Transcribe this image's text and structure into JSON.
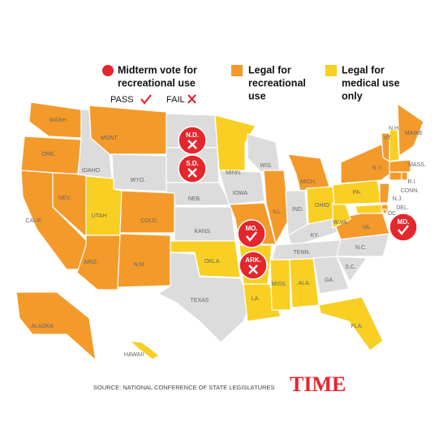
{
  "legend": {
    "vote": [
      "Midterm vote for",
      "recreational use"
    ],
    "pass": "PASS",
    "fail": "FAIL",
    "recreational": [
      "Legal for",
      "recreational",
      "use"
    ],
    "medical": [
      "Legal for",
      "medical use",
      "only"
    ]
  },
  "colors": {
    "recreational": "#f39a2b",
    "medical": "#f8cf22",
    "none": "#dcdcdc",
    "vote": "#e5262d"
  },
  "states": [
    {
      "label": "WASH.",
      "status": "recreational"
    },
    {
      "label": "ORE.",
      "status": "recreational"
    },
    {
      "label": "CALIF.",
      "status": "recreational"
    },
    {
      "label": "NEV.",
      "status": "recreational"
    },
    {
      "label": "IDAHO",
      "status": "none"
    },
    {
      "label": "MONT.",
      "status": "recreational"
    },
    {
      "label": "WYO.",
      "status": "none"
    },
    {
      "label": "UTAH",
      "status": "medical"
    },
    {
      "label": "COLO.",
      "status": "recreational"
    },
    {
      "label": "ARIZ.",
      "status": "recreational"
    },
    {
      "label": "N.M.",
      "status": "recreational"
    },
    {
      "label": null,
      "status": "none"
    },
    {
      "label": null,
      "status": "none"
    },
    {
      "label": "NEB.",
      "status": "none"
    },
    {
      "label": "KANS.",
      "status": "none"
    },
    {
      "label": "OKLA.",
      "status": "medical"
    },
    {
      "label": "TEXAS",
      "status": "none"
    },
    {
      "label": "MINN.",
      "status": "medical"
    },
    {
      "label": "IOWA",
      "status": "none"
    },
    {
      "label": null,
      "status": "recreational"
    },
    {
      "label": null,
      "status": "medical"
    },
    {
      "label": "LA.",
      "status": "medical"
    },
    {
      "label": "WIS.",
      "status": "none"
    },
    {
      "label": "ILL.",
      "status": "recreational"
    },
    {
      "label": "MISS.",
      "status": "medical"
    },
    {
      "label": "ALA.",
      "status": "medical"
    },
    {
      "label": "MICH.",
      "status": "recreational"
    },
    {
      "label": "IND.",
      "status": "none"
    },
    {
      "label": "OHIO",
      "status": "medical"
    },
    {
      "label": "KY.",
      "status": "none"
    },
    {
      "label": "TENN.",
      "status": "none"
    },
    {
      "label": "GA.",
      "status": "none"
    },
    {
      "label": "FLA.",
      "status": "medical"
    },
    {
      "label": "S.C.",
      "status": "none"
    },
    {
      "label": "N.C.",
      "status": "none"
    },
    {
      "label": "VA.",
      "status": "recreational"
    },
    {
      "label": "W.VA.",
      "status": "medical"
    },
    {
      "label": "PA.",
      "status": "medical"
    },
    {
      "label": "N.Y.",
      "status": "recreational"
    },
    {
      "label": "N.J.",
      "status": "recreational"
    },
    {
      "label": "DEL.",
      "status": "recreational"
    },
    {
      "label": null,
      "status": "medical"
    },
    {
      "label": "CONN.",
      "status": "recreational"
    },
    {
      "label": "R.I.",
      "status": "recreational"
    },
    {
      "label": "MASS.",
      "status": "recreational"
    },
    {
      "label": "VT.",
      "status": "recreational"
    },
    {
      "label": "N.H.",
      "status": "medical"
    },
    {
      "label": "MAINE",
      "status": "recreational"
    },
    {
      "label": "ALASKA",
      "status": "recreational"
    },
    {
      "label": "HAWAII",
      "status": "medical"
    },
    {
      "label": "DC",
      "status": "recreational"
    }
  ],
  "votes": [
    {
      "label": "N.D.",
      "result": "fail"
    },
    {
      "label": "S.D.",
      "result": "fail"
    },
    {
      "label": "MO.",
      "result": "pass"
    },
    {
      "label": "ARK.",
      "result": "fail"
    },
    {
      "label": "MD.",
      "result": "pass"
    }
  ],
  "source": "SOURCE: NATIONAL CONFERENCE OF STATE LEGISLATURES",
  "brand": "TIME"
}
